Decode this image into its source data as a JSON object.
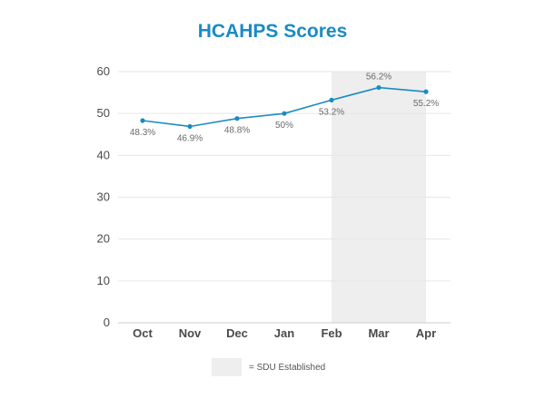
{
  "chart_data": {
    "type": "line",
    "title": "HCAHPS Scores",
    "xlabel": "",
    "ylabel": "",
    "categories": [
      "Oct",
      "Nov",
      "Dec",
      "Jan",
      "Feb",
      "Mar",
      "Apr"
    ],
    "values": [
      48.3,
      46.9,
      48.8,
      50,
      53.2,
      56.2,
      55.2
    ],
    "data_labels": [
      "48.3%",
      "46.9%",
      "48.8%",
      "50%",
      "53.2%",
      "56.2%",
      "55.2%"
    ],
    "ylim": [
      0,
      60
    ],
    "yticks": [
      0,
      10,
      20,
      30,
      40,
      50,
      60
    ],
    "grid": true,
    "highlight_range": [
      "Feb",
      "Apr"
    ],
    "legend": {
      "placement": "bottom-center",
      "text": "= SDU Established"
    },
    "colors": {
      "line": "#1a8bc4",
      "title": "#1a8bc4",
      "highlight": "#eeeeee",
      "grid": "#e6e6e6"
    }
  }
}
